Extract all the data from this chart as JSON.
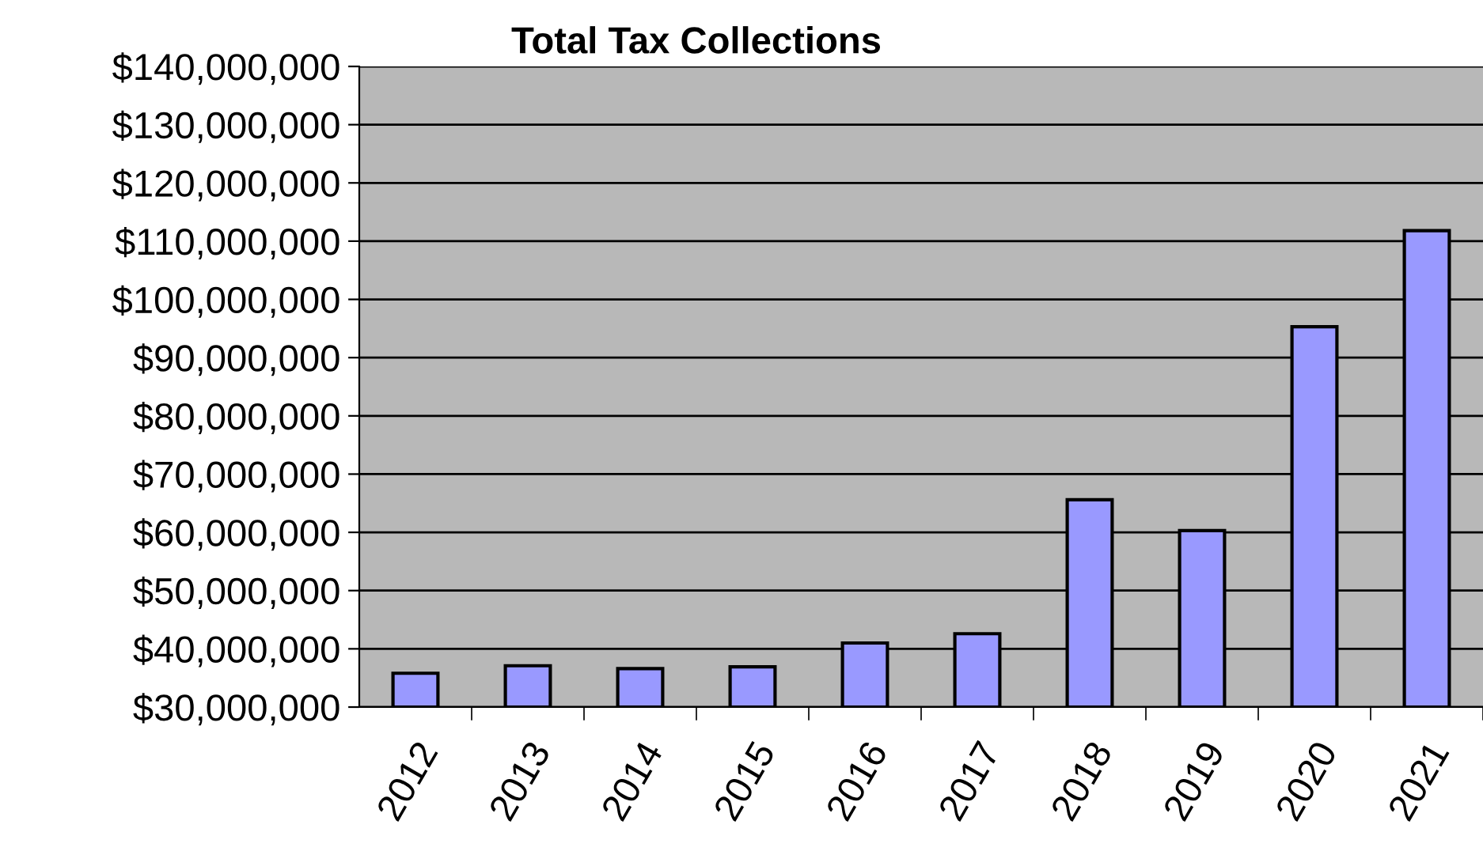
{
  "chart_data": {
    "type": "bar",
    "title": "Total Tax Collections",
    "categories": [
      "2012",
      "2013",
      "2014",
      "2015",
      "2016",
      "2017",
      "2018",
      "2019",
      "2020",
      "2021"
    ],
    "values": [
      35800000,
      37100000,
      36600000,
      36900000,
      41000000,
      42600000,
      65600000,
      60300000,
      95300000,
      111800000
    ],
    "color": "#9999ff",
    "ylim": [
      30000000,
      140000000
    ],
    "yticks": [
      {
        "value": 30000000,
        "label": "$30,000,000"
      },
      {
        "value": 40000000,
        "label": "$40,000,000"
      },
      {
        "value": 50000000,
        "label": "$50,000,000"
      },
      {
        "value": 60000000,
        "label": "$60,000,000"
      },
      {
        "value": 70000000,
        "label": "$70,000,000"
      },
      {
        "value": 80000000,
        "label": "$80,000,000"
      },
      {
        "value": 90000000,
        "label": "$90,000,000"
      },
      {
        "value": 100000000,
        "label": "$100,000,000"
      },
      {
        "value": 110000000,
        "label": "$110,000,000"
      },
      {
        "value": 120000000,
        "label": "$120,000,000"
      },
      {
        "value": 130000000,
        "label": "$130,000,000"
      },
      {
        "value": 140000000,
        "label": "$140,000,000"
      }
    ],
    "grid": "y"
  }
}
